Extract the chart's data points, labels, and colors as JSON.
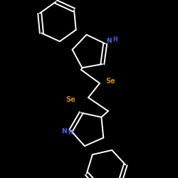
{
  "background_color": "#000000",
  "bond_color": "#ffffff",
  "nh_color": "#4466ff",
  "se_color": "#cc8800",
  "se_label": "Se",
  "line_width": 1.4,
  "figsize": [
    2.5,
    2.5
  ],
  "dpi": 100,
  "xlim": [
    0,
    250
  ],
  "ylim": [
    0,
    250
  ]
}
